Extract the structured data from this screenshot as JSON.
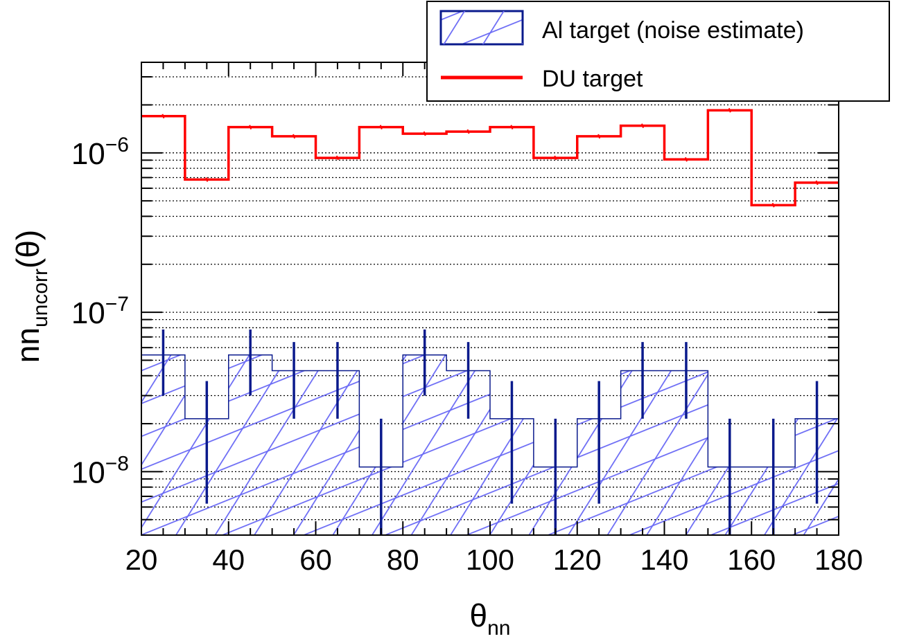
{
  "chart_data": {
    "type": "histogram",
    "xlabel": "θ",
    "xlabel_sub": "nn",
    "ylabel": "nn",
    "ylabel_sub": "uncorr",
    "ylabel_suffix": "(θ)",
    "xlim": [
      20,
      180
    ],
    "ylim": [
      4e-09,
      3.7e-06
    ],
    "y_scale": "log",
    "x_ticks": [
      20,
      40,
      60,
      80,
      100,
      120,
      140,
      160,
      180
    ],
    "y_ticks": [
      {
        "value": 1e-08,
        "base": "10",
        "exp": "−8"
      },
      {
        "value": 1e-07,
        "base": "10",
        "exp": "−7"
      },
      {
        "value": 1e-06,
        "base": "10",
        "exp": "−6"
      }
    ],
    "grid": "y-dotted",
    "legend_position": "top-right",
    "bin_edges": [
      20,
      30,
      40,
      50,
      60,
      70,
      80,
      90,
      100,
      110,
      120,
      130,
      140,
      150,
      160,
      170,
      180
    ],
    "series": [
      {
        "name": "Al target (noise estimate)",
        "style": "hatched-fill",
        "color": "#0a1a8c",
        "hatch_color": "#6a6af5",
        "values": [
          5.4e-08,
          2.15e-08,
          5.4e-08,
          4.3e-08,
          4.3e-08,
          1.07e-08,
          5.4e-08,
          4.3e-08,
          2.15e-08,
          1.07e-08,
          2.15e-08,
          4.3e-08,
          4.3e-08,
          1.07e-08,
          1.07e-08,
          2.15e-08
        ],
        "error_low": [
          3e-08,
          6.3e-09,
          3e-08,
          2.15e-08,
          2.15e-08,
          3e-09,
          3e-08,
          2.15e-08,
          6.3e-09,
          3e-09,
          6.3e-09,
          2.15e-08,
          2.15e-08,
          3e-09,
          3e-09,
          6.3e-09
        ],
        "error_high": [
          7.8e-08,
          3.7e-08,
          7.8e-08,
          6.5e-08,
          6.5e-08,
          2.15e-08,
          7.8e-08,
          6.5e-08,
          3.7e-08,
          2.15e-08,
          3.7e-08,
          6.5e-08,
          6.5e-08,
          2.15e-08,
          2.15e-08,
          3.7e-08
        ]
      },
      {
        "name": "DU target",
        "style": "step-line",
        "color": "#ff0000",
        "values": [
          1.7e-06,
          6.8e-07,
          1.45e-06,
          1.27e-06,
          9.3e-07,
          1.45e-06,
          1.32e-06,
          1.36e-06,
          1.45e-06,
          9.3e-07,
          1.27e-06,
          1.48e-06,
          9.1e-07,
          1.85e-06,
          4.7e-07,
          6.5e-07
        ]
      }
    ]
  }
}
